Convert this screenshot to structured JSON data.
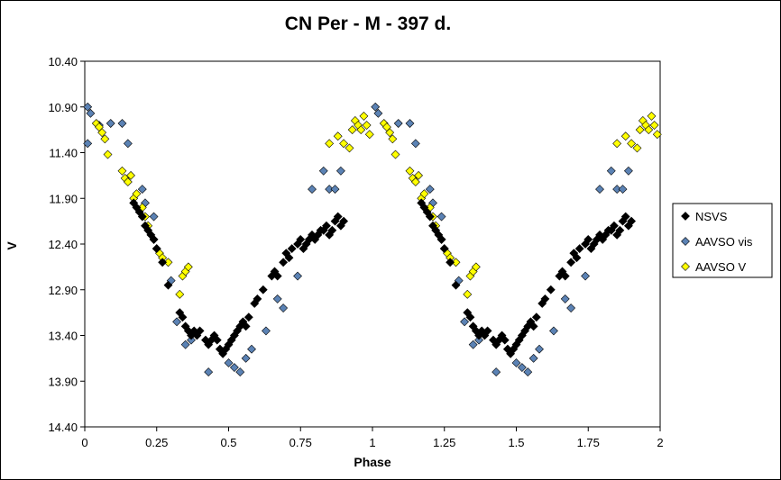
{
  "chart_data": {
    "type": "scatter",
    "title": "CN Per - M - 397 d.",
    "xlabel": "Phase",
    "ylabel": "V",
    "xlim": [
      0,
      2
    ],
    "ylim": [
      14.4,
      10.4
    ],
    "y_inverted": true,
    "xticks": [
      0,
      0.25,
      0.5,
      0.75,
      1,
      1.25,
      1.5,
      1.75,
      2
    ],
    "xtick_labels": [
      "0",
      "0.25",
      "0.5",
      "0.75",
      "1",
      "1.25",
      "1.5",
      "1.75",
      "2"
    ],
    "yticks": [
      10.4,
      10.9,
      11.4,
      11.9,
      12.4,
      12.9,
      13.4,
      13.9,
      14.4
    ],
    "ytick_labels": [
      "10.40",
      "10.90",
      "11.40",
      "11.90",
      "12.40",
      "12.90",
      "13.40",
      "13.90",
      "14.40"
    ],
    "grid": false,
    "legend_position": "right",
    "series": [
      {
        "name": "NSVS",
        "color": "#000000",
        "marker": "diamond",
        "x": [
          0.17,
          0.18,
          0.19,
          0.2,
          0.21,
          0.22,
          0.23,
          0.24,
          0.25,
          0.27,
          0.29,
          0.33,
          0.34,
          0.35,
          0.36,
          0.37,
          0.38,
          0.39,
          0.4,
          0.42,
          0.43,
          0.44,
          0.45,
          0.46,
          0.47,
          0.48,
          0.49,
          0.5,
          0.51,
          0.52,
          0.53,
          0.54,
          0.55,
          0.56,
          0.57,
          0.59,
          0.6,
          0.62,
          0.65,
          0.66,
          0.67,
          0.69,
          0.7,
          0.71,
          0.72,
          0.74,
          0.75,
          0.76,
          0.77,
          0.78,
          0.79,
          0.8,
          0.81,
          0.82,
          0.83,
          0.84,
          0.85,
          0.86,
          0.87,
          0.88,
          0.89,
          0.9,
          1.17,
          1.18,
          1.19,
          1.2,
          1.21,
          1.22,
          1.23,
          1.24,
          1.25,
          1.27,
          1.29,
          1.33,
          1.34,
          1.35,
          1.36,
          1.37,
          1.38,
          1.39,
          1.4,
          1.42,
          1.43,
          1.44,
          1.45,
          1.46,
          1.47,
          1.48,
          1.49,
          1.5,
          1.51,
          1.52,
          1.53,
          1.54,
          1.55,
          1.56,
          1.57,
          1.59,
          1.6,
          1.62,
          1.65,
          1.66,
          1.67,
          1.69,
          1.7,
          1.71,
          1.72,
          1.74,
          1.75,
          1.76,
          1.77,
          1.78,
          1.79,
          1.8,
          1.81,
          1.82,
          1.83,
          1.84,
          1.85,
          1.86,
          1.87,
          1.88,
          1.89,
          1.9
        ],
        "y": [
          11.95,
          12.0,
          12.05,
          12.1,
          12.2,
          12.25,
          12.3,
          12.35,
          12.45,
          12.6,
          12.85,
          13.15,
          13.2,
          13.3,
          13.35,
          13.4,
          13.35,
          13.4,
          13.35,
          13.45,
          13.5,
          13.45,
          13.4,
          13.45,
          13.55,
          13.6,
          13.55,
          13.5,
          13.45,
          13.4,
          13.35,
          13.3,
          13.25,
          13.3,
          13.2,
          13.05,
          13.0,
          12.9,
          12.75,
          12.7,
          12.75,
          12.6,
          12.5,
          12.55,
          12.45,
          12.4,
          12.35,
          12.45,
          12.4,
          12.35,
          12.3,
          12.35,
          12.3,
          12.25,
          12.25,
          12.2,
          12.3,
          12.25,
          12.15,
          12.1,
          12.2,
          12.15,
          11.95,
          12.0,
          12.05,
          12.1,
          12.2,
          12.25,
          12.3,
          12.35,
          12.45,
          12.6,
          12.85,
          13.15,
          13.2,
          13.3,
          13.35,
          13.4,
          13.35,
          13.4,
          13.35,
          13.45,
          13.5,
          13.45,
          13.4,
          13.45,
          13.55,
          13.6,
          13.55,
          13.5,
          13.45,
          13.4,
          13.35,
          13.3,
          13.25,
          13.3,
          13.2,
          13.05,
          13.0,
          12.9,
          12.75,
          12.7,
          12.75,
          12.6,
          12.5,
          12.55,
          12.45,
          12.4,
          12.35,
          12.45,
          12.4,
          12.35,
          12.3,
          12.35,
          12.3,
          12.25,
          12.25,
          12.2,
          12.3,
          12.25,
          12.15,
          12.1,
          12.2,
          12.15
        ]
      },
      {
        "name": "AAVSO vis",
        "color": "#5B82B4",
        "marker": "diamond",
        "x": [
          0.01,
          0.02,
          0.09,
          0.13,
          0.15,
          0.2,
          0.21,
          0.24,
          0.3,
          0.32,
          0.35,
          0.37,
          0.43,
          0.47,
          0.5,
          0.52,
          0.54,
          0.56,
          0.58,
          0.63,
          0.67,
          0.69,
          0.74,
          0.79,
          0.83,
          0.85,
          0.87,
          0.89,
          1.01,
          1.02,
          1.09,
          1.13,
          1.15,
          1.2,
          1.21,
          1.24,
          1.3,
          1.32,
          1.35,
          1.37,
          1.43,
          1.47,
          1.5,
          1.52,
          1.54,
          1.56,
          1.58,
          1.63,
          1.67,
          1.69,
          1.74,
          1.79,
          1.83,
          1.85,
          1.87,
          1.89,
          0.01,
          0.05
        ],
        "y": [
          10.9,
          10.97,
          11.08,
          11.08,
          11.3,
          11.8,
          11.95,
          12.1,
          12.8,
          13.25,
          13.5,
          13.45,
          13.8,
          13.55,
          13.7,
          13.75,
          13.8,
          13.65,
          13.55,
          13.35,
          13.0,
          13.1,
          12.75,
          11.8,
          11.6,
          11.8,
          11.8,
          11.6,
          10.9,
          10.97,
          11.08,
          11.08,
          11.3,
          11.8,
          11.95,
          12.1,
          12.8,
          13.25,
          13.5,
          13.45,
          13.8,
          13.55,
          13.7,
          13.75,
          13.8,
          13.65,
          13.55,
          13.35,
          13.0,
          13.1,
          12.75,
          11.8,
          11.6,
          11.8,
          11.8,
          11.6,
          11.3,
          11.1
        ]
      },
      {
        "name": "AAVSO V",
        "color": "#FFFF00",
        "marker": "diamond",
        "x": [
          0.04,
          0.05,
          0.06,
          0.07,
          0.08,
          0.13,
          0.14,
          0.15,
          0.16,
          0.17,
          0.18,
          0.2,
          0.21,
          0.22,
          0.24,
          0.25,
          0.26,
          0.27,
          0.29,
          0.33,
          0.34,
          0.35,
          0.36,
          0.85,
          0.88,
          0.9,
          0.92,
          0.93,
          0.94,
          0.95,
          0.96,
          0.97,
          0.98,
          0.99,
          1.04,
          1.05,
          1.06,
          1.07,
          1.08,
          1.13,
          1.14,
          1.15,
          1.16,
          1.17,
          1.18,
          1.2,
          1.21,
          1.22,
          1.24,
          1.25,
          1.26,
          1.27,
          1.29,
          1.33,
          1.34,
          1.35,
          1.36,
          1.85,
          1.88,
          1.9,
          1.92,
          1.93,
          1.94,
          1.95,
          1.96,
          1.97,
          1.98,
          1.99
        ],
        "y": [
          11.08,
          11.12,
          11.18,
          11.25,
          11.42,
          11.6,
          11.68,
          11.72,
          11.65,
          11.9,
          11.85,
          12.0,
          12.1,
          12.2,
          12.35,
          12.45,
          12.5,
          12.55,
          12.6,
          12.95,
          12.75,
          12.7,
          12.65,
          11.3,
          11.22,
          11.3,
          11.35,
          11.15,
          11.05,
          11.1,
          11.15,
          11.0,
          11.1,
          11.2,
          11.08,
          11.12,
          11.18,
          11.25,
          11.42,
          11.6,
          11.68,
          11.72,
          11.65,
          11.9,
          11.85,
          12.0,
          12.1,
          12.2,
          12.35,
          12.45,
          12.5,
          12.55,
          12.6,
          12.95,
          12.75,
          12.7,
          12.65,
          11.3,
          11.22,
          11.3,
          11.35,
          11.15,
          11.05,
          11.1,
          11.15,
          11.0,
          11.1,
          11.2
        ]
      }
    ]
  }
}
